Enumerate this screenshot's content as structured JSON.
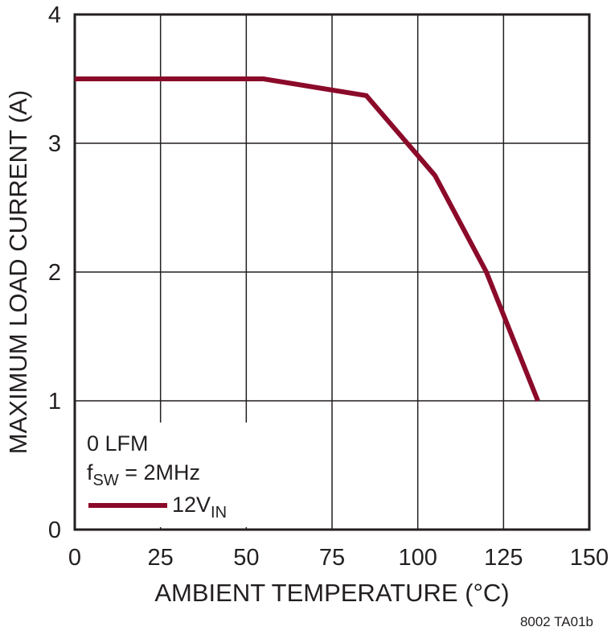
{
  "chart_data": {
    "type": "line",
    "xlabel": "AMBIENT TEMPERATURE (°C)",
    "ylabel": "MAXIMUM LOAD CURRENT (A)",
    "xlim": [
      0,
      150
    ],
    "ylim": [
      0,
      4
    ],
    "xticks": [
      0,
      25,
      50,
      75,
      100,
      125,
      150
    ],
    "yticks": [
      0,
      1,
      2,
      3,
      4
    ],
    "grid": true,
    "series": [
      {
        "name": "12V",
        "name_sub": "IN",
        "color": "#8b0a2a",
        "x": [
          0,
          55,
          85,
          105,
          120,
          135
        ],
        "y": [
          3.5,
          3.5,
          3.37,
          2.75,
          2.0,
          1.0
        ]
      }
    ],
    "annotations": {
      "line1": "0 LFM",
      "line2_main": "f",
      "line2_sub": "SW",
      "line2_rest": " = 2MHz"
    },
    "footnote": "8002 TA01b"
  }
}
